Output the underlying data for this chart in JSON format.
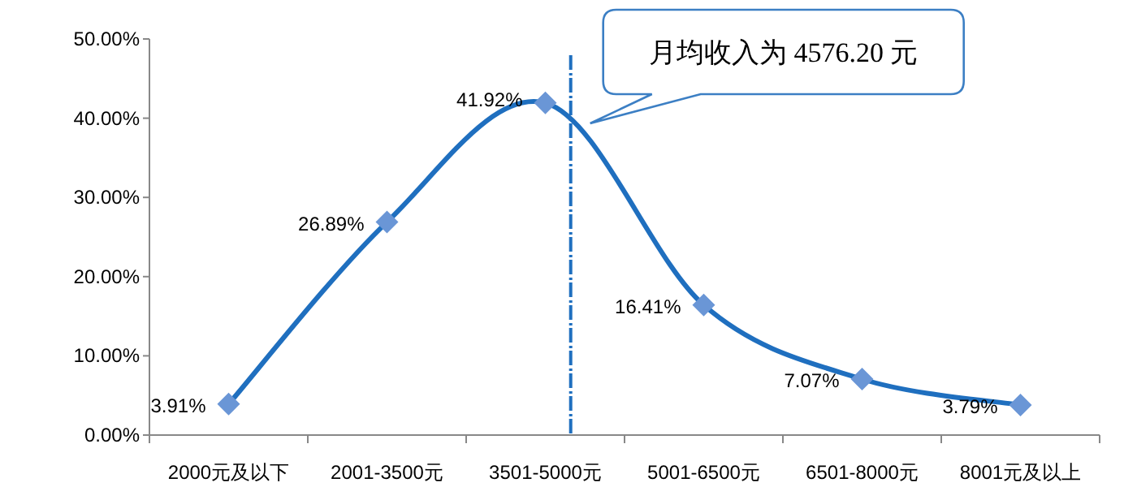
{
  "chart_data": {
    "type": "line",
    "categories": [
      "2000元及以下",
      "2001-3500元",
      "3501-5000元",
      "5001-6500元",
      "6501-8000元",
      "8001元及以上"
    ],
    "series": [
      {
        "color": "#1f6fbf",
        "values": [
          3.91,
          26.89,
          41.92,
          16.41,
          7.07,
          3.79
        ],
        "value_labels": [
          "3.91%",
          "26.89%",
          "41.92%",
          "16.41%",
          "7.07%",
          "3.79%"
        ]
      }
    ],
    "marker": "diamond",
    "line_style": "solid",
    "grid": false,
    "ylim": [
      0,
      50
    ],
    "yticks": [
      {
        "value": 0,
        "label": "0.00%"
      },
      {
        "value": 10,
        "label": "10.00%"
      },
      {
        "value": 20,
        "label": "20.00%"
      },
      {
        "value": 30,
        "label": "30.00%"
      },
      {
        "value": 40,
        "label": "40.00%"
      },
      {
        "value": 50,
        "label": "50.00%"
      }
    ],
    "annotations": [
      "月均收入为 4576.20 元"
    ]
  }
}
